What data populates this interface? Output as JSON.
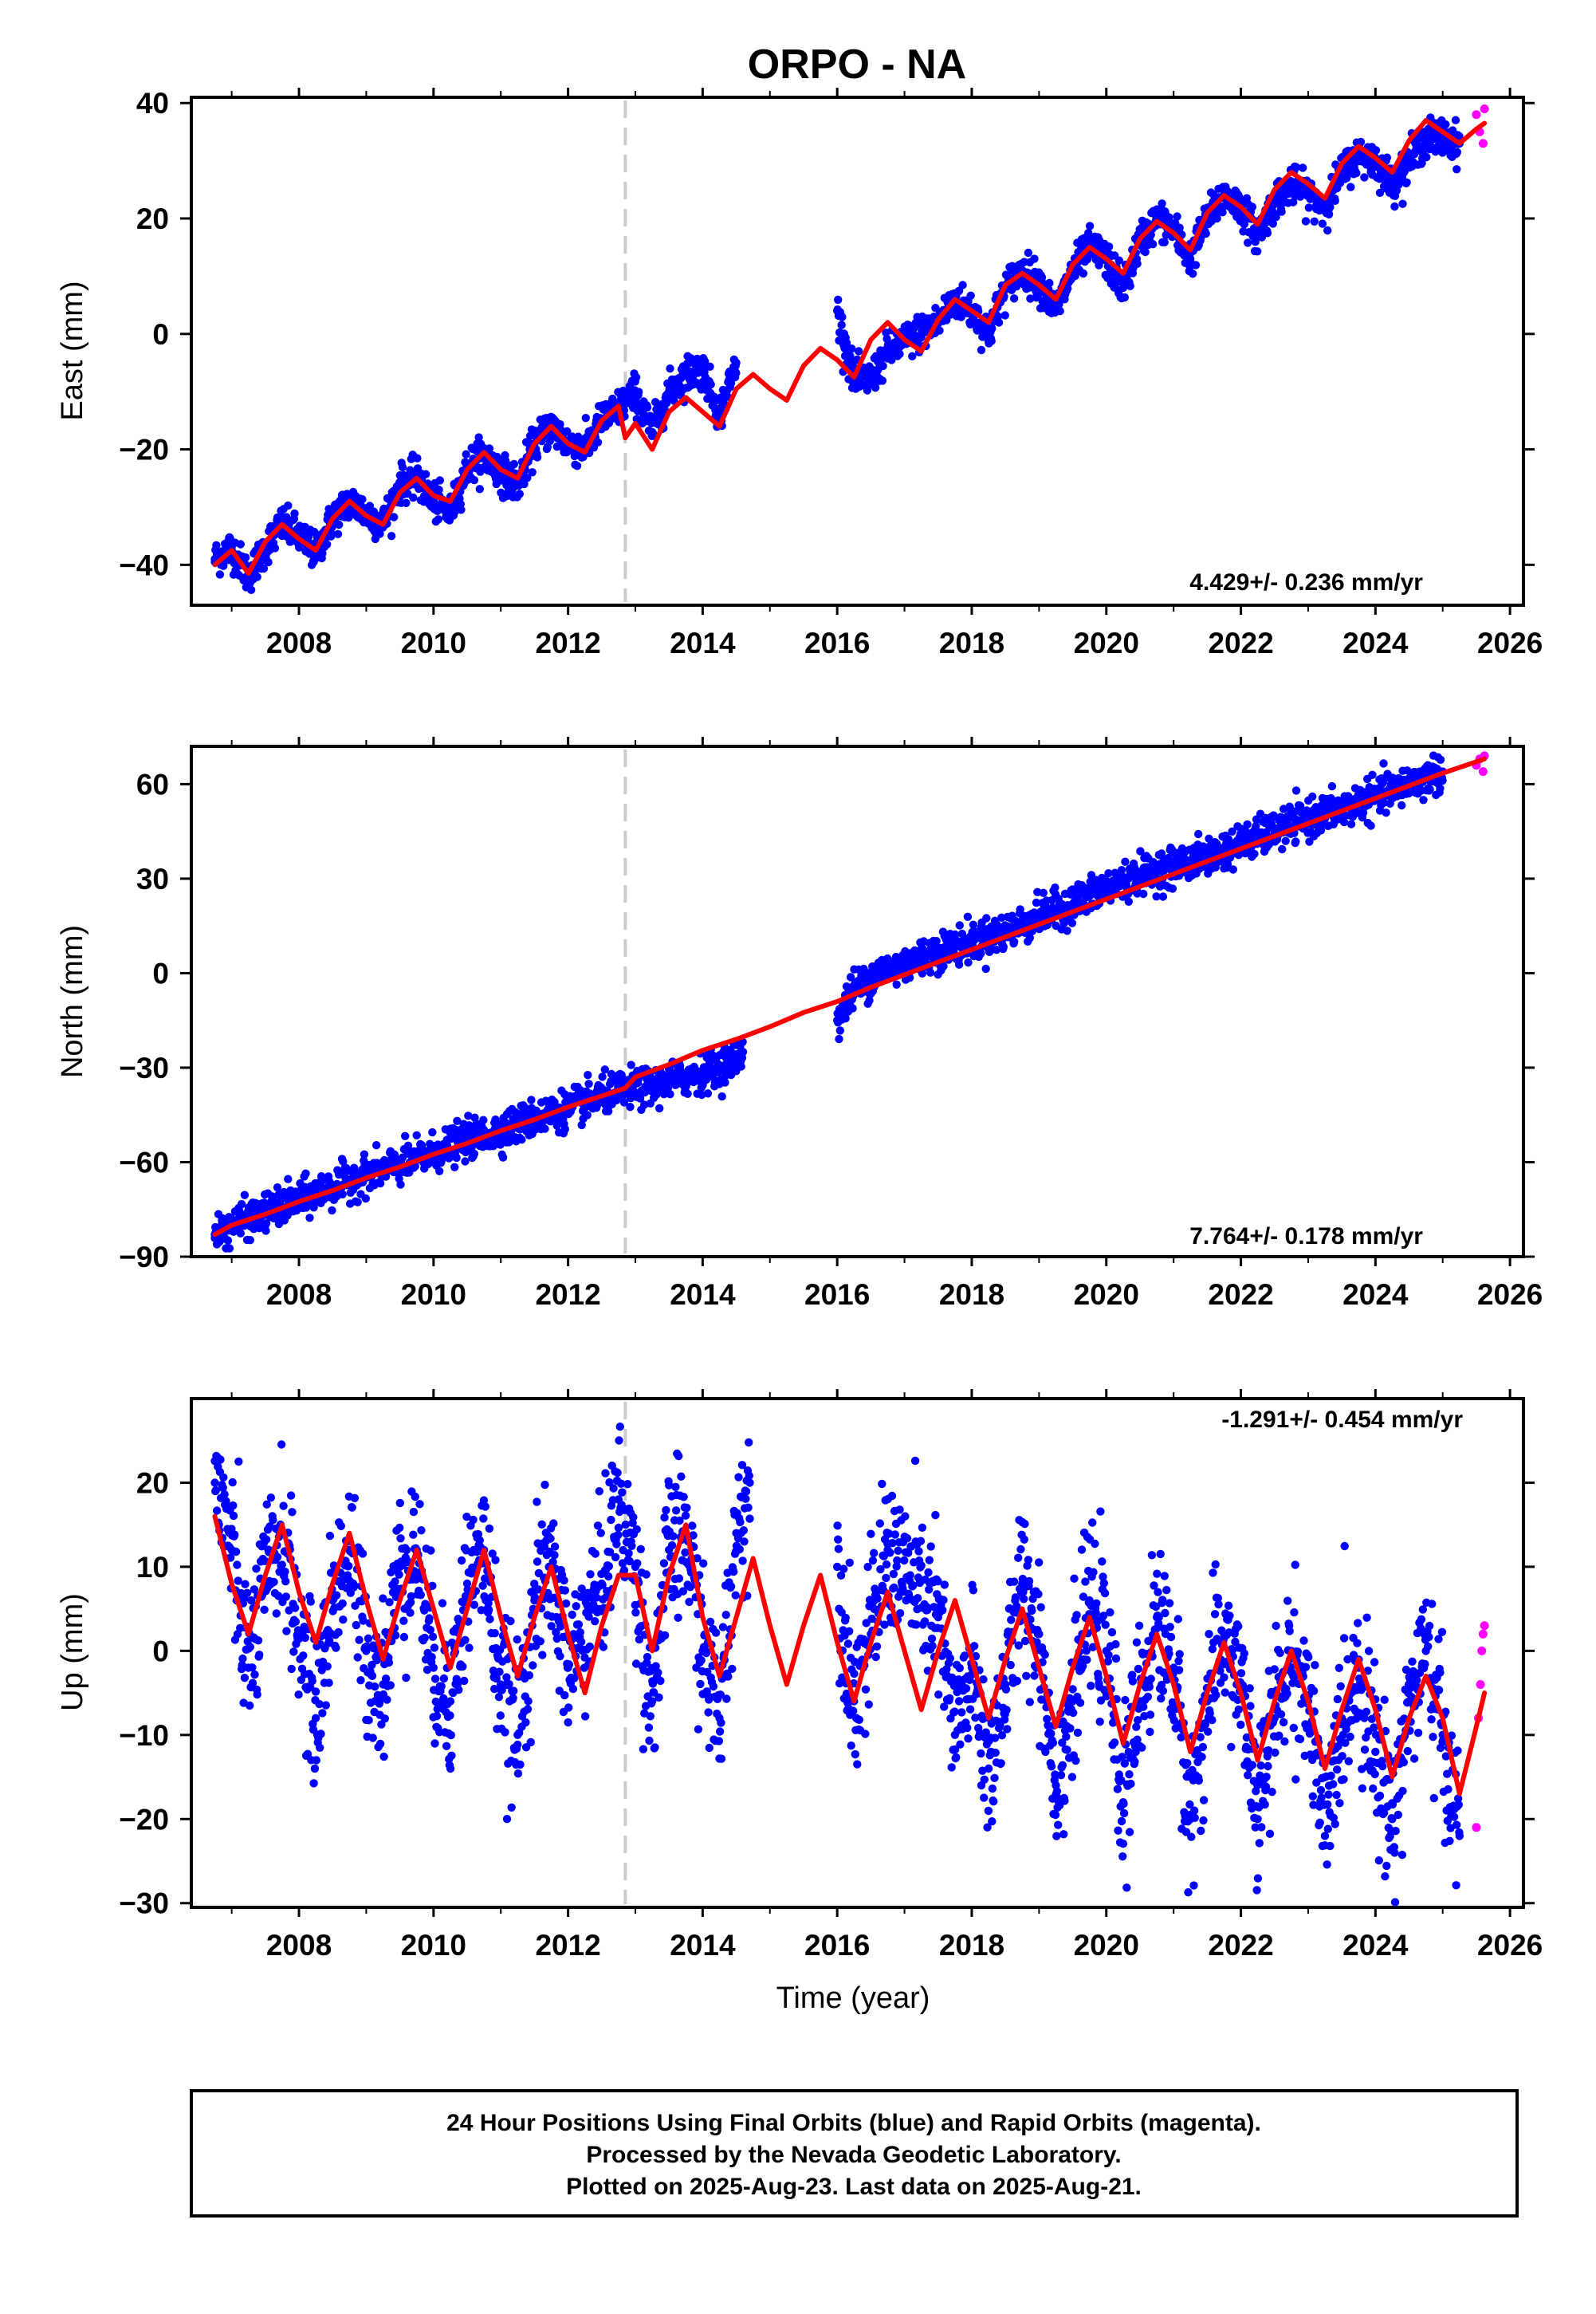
{
  "title": "ORPO - NA",
  "xlabel": "Time (year)",
  "footer": {
    "line1": "24 Hour Positions Using Final Orbits (blue) and Rapid Orbits (magenta).",
    "line2": "Processed by the Nevada Geodetic Laboratory.",
    "line3": "Plotted on 2025-Aug-23. Last data on 2025-Aug-21."
  },
  "colors": {
    "final_orbits": "#0000ff",
    "rapid_orbits": "#ff00ff",
    "model": "#ff0000",
    "equipment_change": "#cccccc"
  },
  "chart_data": [
    {
      "type": "scatter",
      "component": "East",
      "ylabel": "East (mm)",
      "xlim": [
        2006.4,
        2026.2
      ],
      "ylim": [
        -47,
        41
      ],
      "xticks": [
        "2008",
        "2010",
        "2012",
        "2014",
        "2016",
        "2018",
        "2020",
        "2022",
        "2024",
        "2026"
      ],
      "yticks": [
        "40",
        "20",
        "0",
        "−20",
        "−40"
      ],
      "yticks_values": [
        40,
        20,
        0,
        -20,
        -40
      ],
      "rate_label": "4.429+/- 0.236 mm/yr",
      "rate_position": "bottom-right",
      "equipment_change_year": 2012.85,
      "series": [
        {
          "name": "final",
          "x": [
            2006.75,
            2007.0,
            2007.25,
            2007.5,
            2007.75,
            2008.0,
            2008.25,
            2008.5,
            2008.75,
            2009.0,
            2009.25,
            2009.5,
            2009.75,
            2010.0,
            2010.25,
            2010.5,
            2010.75,
            2011.0,
            2011.25,
            2011.5,
            2011.75,
            2012.0,
            2012.25,
            2012.5,
            2012.75,
            2013.0,
            2013.25,
            2013.5,
            2013.75,
            2014.0,
            2014.25,
            2014.5,
            2016.0,
            2016.25,
            2016.5,
            2016.75,
            2017.5,
            2017.75,
            2018.0,
            2018.25,
            2018.5,
            2018.75,
            2019.0,
            2019.25,
            2019.5,
            2019.75,
            2020.0,
            2020.25,
            2020.5,
            2020.75,
            2021.0,
            2021.25,
            2021.5,
            2021.75,
            2022.0,
            2022.25,
            2022.5,
            2022.75,
            2023.0,
            2023.25,
            2023.5,
            2023.75,
            2024.0,
            2024.25,
            2024.5,
            2024.75,
            2025.0,
            2025.25
          ],
          "y": [
            -39,
            -37,
            -42,
            -37,
            -33,
            -35,
            -38,
            -32,
            -29,
            -31,
            -33,
            -26,
            -25,
            -29,
            -31,
            -23,
            -21,
            -24,
            -26,
            -19,
            -16,
            -19,
            -20,
            -15,
            -13,
            -10,
            -17,
            -10,
            -7,
            -6,
            -14,
            -5,
            4,
            -8,
            -8,
            -3,
            2,
            6,
            4,
            0,
            8,
            11,
            9,
            4,
            11,
            15,
            13,
            8,
            16,
            20,
            18,
            13,
            20,
            24,
            22,
            17,
            23,
            26,
            24,
            22,
            28,
            31,
            30,
            26,
            30,
            34,
            34,
            33
          ]
        },
        {
          "name": "rapid",
          "x": [
            2025.5,
            2025.55,
            2025.6,
            2025.62
          ],
          "y": [
            38,
            35,
            33,
            39
          ]
        },
        {
          "name": "model",
          "x": [
            2006.75,
            2007.0,
            2007.25,
            2007.5,
            2007.75,
            2008.0,
            2008.25,
            2008.5,
            2008.75,
            2009.0,
            2009.25,
            2009.5,
            2009.75,
            2010.0,
            2010.25,
            2010.5,
            2010.75,
            2011.0,
            2011.25,
            2011.5,
            2011.75,
            2012.0,
            2012.25,
            2012.5,
            2012.75,
            2012.85,
            2013.0,
            2013.25,
            2013.5,
            2013.75,
            2014.0,
            2014.25,
            2014.5,
            2014.75,
            2015.0,
            2015.25,
            2015.5,
            2015.75,
            2016.0,
            2016.25,
            2016.5,
            2016.75,
            2017.0,
            2017.25,
            2017.5,
            2017.75,
            2018.0,
            2018.25,
            2018.5,
            2018.75,
            2019.0,
            2019.25,
            2019.5,
            2019.75,
            2020.0,
            2020.25,
            2020.5,
            2020.75,
            2021.0,
            2021.25,
            2021.5,
            2021.75,
            2022.0,
            2022.25,
            2022.5,
            2022.75,
            2023.0,
            2023.25,
            2023.5,
            2023.75,
            2024.0,
            2024.25,
            2024.5,
            2024.75,
            2025.0,
            2025.25,
            2025.5,
            2025.62
          ],
          "y": [
            -40,
            -37.5,
            -41.5,
            -36,
            -33,
            -35.5,
            -37.5,
            -32,
            -29,
            -31.5,
            -33,
            -27.5,
            -25,
            -28,
            -29,
            -23.5,
            -20.5,
            -23.5,
            -25,
            -19,
            -16,
            -19,
            -20.5,
            -15,
            -12.5,
            -18,
            -15.5,
            -20,
            -13.5,
            -11,
            -13.5,
            -16,
            -9.5,
            -7,
            -9.5,
            -11.5,
            -5.5,
            -2.5,
            -4.5,
            -7.5,
            -1,
            2,
            -1,
            -3,
            2.5,
            6,
            4,
            2,
            8.5,
            10.5,
            8.5,
            6,
            12,
            15,
            13,
            10.5,
            16.5,
            19.5,
            17.5,
            14.5,
            21,
            24,
            22,
            19,
            25,
            28,
            26,
            23.5,
            29.5,
            32.5,
            30.5,
            28,
            33.5,
            37,
            35,
            33,
            35.5,
            36.5
          ]
        }
      ]
    },
    {
      "type": "scatter",
      "component": "North",
      "ylabel": "North (mm)",
      "xlim": [
        2006.4,
        2026.2
      ],
      "ylim": [
        -90,
        72
      ],
      "xticks": [
        "2008",
        "2010",
        "2012",
        "2014",
        "2016",
        "2018",
        "2020",
        "2022",
        "2024",
        "2026"
      ],
      "yticks": [
        "60",
        "30",
        "0",
        "−30",
        "−60",
        "−90"
      ],
      "yticks_values": [
        60,
        30,
        0,
        -30,
        -60,
        -90
      ],
      "rate_label": "7.764+/- 0.178 mm/yr",
      "rate_position": "bottom-right",
      "equipment_change_year": 2012.85,
      "series": [
        {
          "name": "final",
          "x": [
            2006.75,
            2007.0,
            2007.5,
            2008.0,
            2008.5,
            2009.0,
            2009.5,
            2010.0,
            2010.5,
            2011.0,
            2011.5,
            2012.0,
            2012.5,
            2012.85,
            2013.25,
            2013.75,
            2014.25,
            2014.6,
            2016.0,
            2016.25,
            2016.6,
            2016.9,
            2017.5,
            2018.0,
            2018.5,
            2019.0,
            2019.5,
            2020.0,
            2020.5,
            2021.0,
            2021.5,
            2022.0,
            2022.5,
            2023.0,
            2023.5,
            2024.0,
            2024.5,
            2025.0
          ],
          "y": [
            -83,
            -80,
            -76,
            -72,
            -68,
            -64,
            -61,
            -57,
            -53,
            -50,
            -46,
            -43,
            -39,
            -37,
            -36,
            -33,
            -30,
            -25,
            -15,
            -5,
            0,
            2,
            7,
            10,
            13,
            18,
            22,
            27,
            31,
            34,
            37,
            41,
            45,
            49,
            52,
            56,
            60,
            64
          ]
        },
        {
          "name": "rapid",
          "x": [
            2025.5,
            2025.55,
            2025.6,
            2025.62
          ],
          "y": [
            66,
            68,
            64,
            69
          ]
        },
        {
          "name": "model",
          "x": [
            2006.75,
            2007.0,
            2007.5,
            2008.0,
            2008.5,
            2009.0,
            2009.5,
            2010.0,
            2010.5,
            2011.0,
            2011.5,
            2012.0,
            2012.5,
            2012.85,
            2013.0,
            2013.5,
            2014.0,
            2014.5,
            2015.0,
            2015.5,
            2016.0,
            2016.5,
            2017.0,
            2017.5,
            2018.0,
            2018.5,
            2019.0,
            2019.5,
            2020.0,
            2020.5,
            2021.0,
            2021.5,
            2022.0,
            2022.5,
            2023.0,
            2023.5,
            2024.0,
            2024.5,
            2025.0,
            2025.62
          ],
          "y": [
            -83,
            -80,
            -76.5,
            -72.5,
            -69,
            -65,
            -61.5,
            -57.5,
            -54,
            -50,
            -46.5,
            -42.5,
            -39,
            -36.5,
            -33,
            -29,
            -24.5,
            -21,
            -17,
            -12.5,
            -9,
            -4.5,
            -0.5,
            3.5,
            7.5,
            11.5,
            15.5,
            19.5,
            23.5,
            27.5,
            31.5,
            35.5,
            39.5,
            43.5,
            47.5,
            51.5,
            55.5,
            59.5,
            63.5,
            68
          ]
        }
      ]
    },
    {
      "type": "scatter",
      "component": "Up",
      "ylabel": "Up (mm)",
      "xlim": [
        2006.4,
        2026.2
      ],
      "ylim": [
        -30.5,
        30
      ],
      "xticks": [
        "2008",
        "2010",
        "2012",
        "2014",
        "2016",
        "2018",
        "2020",
        "2022",
        "2024",
        "2026"
      ],
      "yticks": [
        "20",
        "10",
        "0",
        "−10",
        "−20",
        "−30"
      ],
      "yticks_values": [
        20,
        10,
        0,
        -10,
        -20,
        -30
      ],
      "rate_label": "-1.291+/- 0.454 mm/yr",
      "rate_position": "top-right",
      "equipment_change_year": 2012.85,
      "xlabel": "Time (year)",
      "series": [
        {
          "name": "final",
          "x": [
            2006.75,
            2007.0,
            2007.25,
            2007.5,
            2007.75,
            2008.0,
            2008.25,
            2008.5,
            2008.75,
            2009.0,
            2009.25,
            2009.5,
            2009.75,
            2010.0,
            2010.25,
            2010.5,
            2010.75,
            2011.0,
            2011.25,
            2011.5,
            2011.75,
            2012.0,
            2012.5,
            2012.75,
            2013.0,
            2013.25,
            2013.5,
            2013.75,
            2014.0,
            2014.25,
            2014.5,
            2014.7,
            2016.0,
            2016.25,
            2016.5,
            2016.75,
            2017.5,
            2017.75,
            2018.0,
            2018.25,
            2018.5,
            2018.75,
            2019.0,
            2019.25,
            2019.5,
            2019.75,
            2020.0,
            2020.25,
            2020.5,
            2020.75,
            2021.0,
            2021.25,
            2021.5,
            2021.75,
            2022.0,
            2022.25,
            2022.5,
            2022.75,
            2023.0,
            2023.25,
            2023.5,
            2023.75,
            2024.0,
            2024.25,
            2024.5,
            2024.75,
            2025.0,
            2025.25
          ],
          "y": [
            20,
            12,
            -2,
            8,
            14,
            2,
            -8,
            6,
            12,
            0,
            -4,
            10,
            12,
            -2,
            -6,
            8,
            12,
            -4,
            -10,
            6,
            10,
            -2,
            8,
            18,
            10,
            -6,
            12,
            14,
            0,
            -8,
            14,
            20,
            10,
            -6,
            2,
            12,
            4,
            -10,
            -2,
            -14,
            -4,
            8,
            2,
            -16,
            -6,
            6,
            0,
            -18,
            -6,
            4,
            -2,
            -20,
            -6,
            2,
            -4,
            -20,
            -8,
            0,
            -6,
            -22,
            -8,
            -2,
            -12,
            -20,
            -6,
            0,
            -10,
            -22
          ]
        },
        {
          "name": "rapid",
          "x": [
            2025.5,
            2025.53,
            2025.56,
            2025.58,
            2025.6,
            2025.62
          ],
          "y": [
            -21,
            -8,
            -4,
            0,
            2,
            3
          ]
        },
        {
          "name": "model",
          "x": [
            2006.75,
            2007.0,
            2007.25,
            2007.5,
            2007.75,
            2008.0,
            2008.25,
            2008.5,
            2008.75,
            2009.0,
            2009.25,
            2009.5,
            2009.75,
            2010.0,
            2010.25,
            2010.5,
            2010.75,
            2011.0,
            2011.25,
            2011.5,
            2011.75,
            2012.0,
            2012.25,
            2012.5,
            2012.75,
            2013.0,
            2013.25,
            2013.5,
            2013.75,
            2014.0,
            2014.25,
            2014.5,
            2014.75,
            2015.0,
            2015.25,
            2015.5,
            2015.75,
            2016.0,
            2016.25,
            2016.5,
            2016.75,
            2017.0,
            2017.25,
            2017.5,
            2017.75,
            2018.0,
            2018.25,
            2018.5,
            2018.75,
            2019.0,
            2019.25,
            2019.5,
            2019.75,
            2020.0,
            2020.25,
            2020.5,
            2020.75,
            2021.0,
            2021.25,
            2021.5,
            2021.75,
            2022.0,
            2022.25,
            2022.5,
            2022.75,
            2023.0,
            2023.25,
            2023.5,
            2023.75,
            2024.0,
            2024.25,
            2024.5,
            2024.75,
            2025.0,
            2025.25,
            2025.5,
            2025.62
          ],
          "y": [
            16,
            8,
            2,
            9,
            15,
            7,
            1,
            8,
            14,
            6,
            -1,
            6,
            12,
            5,
            -2,
            5,
            12,
            4,
            -3,
            4,
            10,
            2,
            -5,
            3,
            9,
            9,
            0,
            9,
            15,
            4,
            -3,
            4,
            11,
            3,
            -4,
            3,
            9,
            1,
            -6,
            1,
            7,
            0,
            -7,
            0,
            6,
            -1,
            -8,
            -1,
            5,
            -2,
            -9,
            -2,
            4,
            -3,
            -11,
            -4,
            2,
            -4,
            -12,
            -5,
            1,
            -5,
            -13,
            -6,
            0,
            -6,
            -14,
            -7,
            -1,
            -7,
            -15,
            -8,
            -3,
            -8,
            -17,
            -9,
            -5
          ]
        }
      ]
    }
  ]
}
